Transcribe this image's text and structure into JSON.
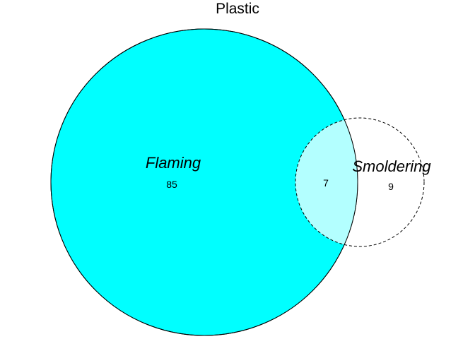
{
  "title": "Plastic",
  "colors": {
    "set_a_fill": "#00ffff",
    "intersection_fill": "#b3ffff",
    "set_b_fill": "#ffffff",
    "outline": "#000000",
    "background": "#ffffff"
  },
  "sets": [
    {
      "label": "Flaming",
      "only_count": "85",
      "outline_style": "solid"
    },
    {
      "label": "Smoldering",
      "only_count": "9",
      "outline_style": "dashed"
    }
  ],
  "intersection": {
    "count": "7"
  }
}
